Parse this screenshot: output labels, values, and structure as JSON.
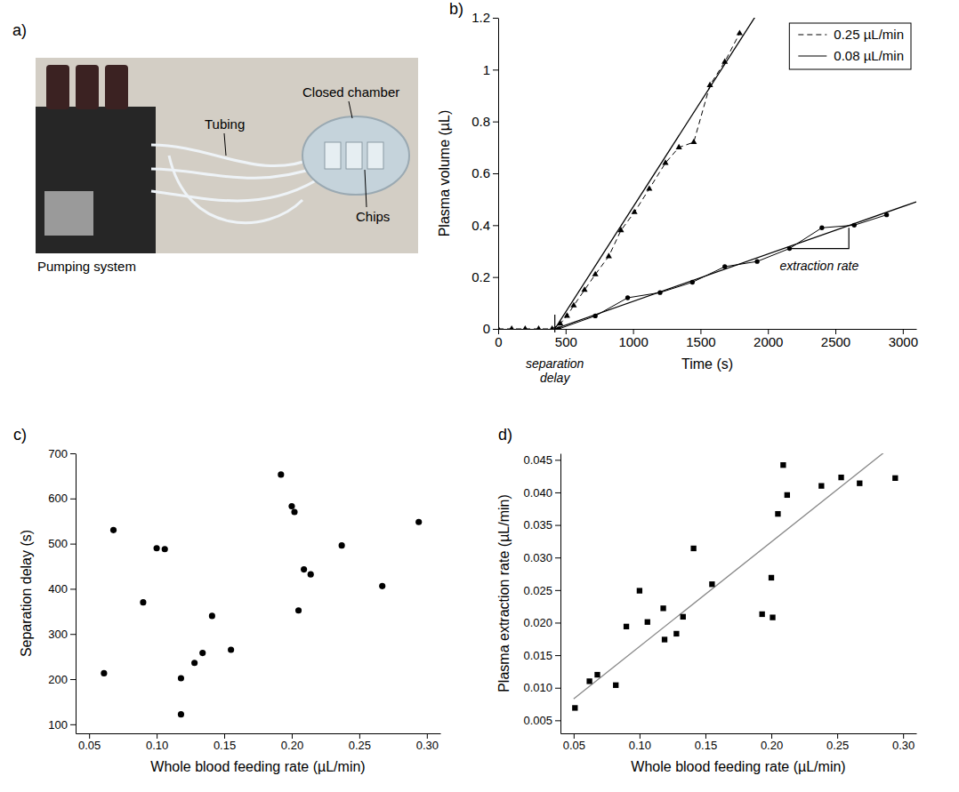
{
  "photo": {
    "panel": "a)",
    "labels": [
      "Closed chamber",
      "Tubing",
      "Chips",
      "Pumping system"
    ]
  },
  "chart_data": [
    {
      "type": "line",
      "panel": "b)",
      "x_label": "Time (s)",
      "y_label": "Plasma volume (µL)",
      "xlim": [
        0,
        3100
      ],
      "xticks": [
        0,
        500,
        1000,
        1500,
        2000,
        2500,
        3000
      ],
      "ylim": [
        0,
        1.2
      ],
      "yticks": [
        0,
        0.2,
        0.4,
        0.6,
        0.8,
        1,
        1.2
      ],
      "legend": "upper right",
      "series": [
        {
          "name": "0.25 µL/min",
          "color": "#000000",
          "line_style": "dashed",
          "marker": "triangle",
          "x": [
            0,
            100,
            200,
            300,
            400,
            460,
            510,
            560,
            640,
            720,
            820,
            910,
            1010,
            1120,
            1240,
            1340,
            1450,
            1570,
            1680,
            1790
          ],
          "values": [
            0,
            0,
            0,
            0,
            0,
            0.02,
            0.05,
            0.09,
            0.15,
            0.21,
            0.28,
            0.38,
            0.45,
            0.54,
            0.64,
            0.7,
            0.72,
            0.94,
            1.03,
            1.14
          ]
        },
        {
          "name": "0.08 µL/min",
          "color": "#000000",
          "line_style": "solid",
          "marker": "circle",
          "x": [
            450,
            720,
            960,
            1200,
            1440,
            1680,
            1920,
            2160,
            2400,
            2640,
            2880
          ],
          "values": [
            0,
            0.05,
            0.12,
            0.14,
            0.18,
            0.24,
            0.26,
            0.31,
            0.39,
            0.4,
            0.44
          ]
        }
      ],
      "fits": [
        {
          "color": "#000000",
          "x": [
            420,
            1950
          ],
          "values": [
            0,
            1.24
          ]
        },
        {
          "color": "#000000",
          "x": [
            420,
            3100
          ],
          "values": [
            0,
            0.49
          ]
        }
      ],
      "annotations": [
        {
          "text": "separation delay",
          "x": 420
        },
        {
          "text": "extraction rate",
          "x": [
            2160,
            2600
          ],
          "y": [
            0.31,
            0.39
          ]
        }
      ]
    },
    {
      "type": "scatter",
      "panel": "c)",
      "x_label": "Whole blood feeding rate (µL/min)",
      "y_label": "Separation delay (s)",
      "xlim": [
        0.04,
        0.31
      ],
      "xticks": [
        0.05,
        {
          "value": 0.1,
          "label": "0.10"
        },
        0.15,
        {
          "value": 0.2,
          "label": "0.20"
        },
        0.25,
        {
          "value": 0.3,
          "label": "0.30"
        }
      ],
      "ylim": [
        80,
        700
      ],
      "yticks": [
        100,
        200,
        300,
        400,
        500,
        600,
        700
      ],
      "series": [
        {
          "color": "#000000",
          "marker": "circle",
          "x": [
            0.061,
            0.068,
            0.09,
            0.1,
            0.106,
            0.118,
            0.118,
            0.128,
            0.134,
            0.141,
            0.155,
            0.192,
            0.2,
            0.202,
            0.205,
            0.209,
            0.214,
            0.237,
            0.267,
            0.294
          ],
          "values": [
            213,
            530,
            370,
            490,
            488,
            202,
            122,
            236,
            258,
            340,
            265,
            653,
            583,
            570,
            352,
            443,
            432,
            496,
            406,
            548
          ]
        }
      ]
    },
    {
      "type": "scatter",
      "panel": "d)",
      "x_label": "Whole blood feeding rate (µL/min)",
      "y_label": "Plasma extraction rate (µL/min)",
      "xlim": [
        0.04,
        0.31
      ],
      "xticks": [
        0.05,
        {
          "value": 0.1,
          "label": "0.10"
        },
        0.15,
        {
          "value": 0.2,
          "label": "0.20"
        },
        0.25,
        {
          "value": 0.3,
          "label": "0.30"
        }
      ],
      "ylim": [
        0.003,
        0.046
      ],
      "yticks": [
        0.005,
        {
          "value": 0.01,
          "label": "0.010"
        },
        0.015,
        {
          "value": 0.02,
          "label": "0.020"
        },
        0.025,
        {
          "value": 0.03,
          "label": "0.030"
        },
        0.035,
        {
          "value": 0.04,
          "label": "0.040"
        },
        0.045
      ],
      "series": [
        {
          "color": "#000000",
          "marker": "square",
          "x": [
            0.051,
            0.062,
            0.068,
            0.082,
            0.09,
            0.1,
            0.106,
            0.118,
            0.119,
            0.128,
            0.133,
            0.141,
            0.155,
            0.193,
            0.2,
            0.201,
            0.205,
            0.209,
            0.212,
            0.238,
            0.253,
            0.267,
            0.294
          ],
          "values": [
            0.0069,
            0.011,
            0.012,
            0.0104,
            0.0194,
            0.0249,
            0.0201,
            0.0222,
            0.0174,
            0.0183,
            0.0209,
            0.0314,
            0.0259,
            0.0213,
            0.0269,
            0.0208,
            0.0367,
            0.0442,
            0.0396,
            0.041,
            0.0423,
            0.0414,
            0.0422
          ]
        }
      ],
      "fits": [
        {
          "color": "#888888",
          "x": [
            0.05,
            0.294
          ],
          "values": [
            0.0083,
            0.0475
          ]
        }
      ]
    }
  ]
}
